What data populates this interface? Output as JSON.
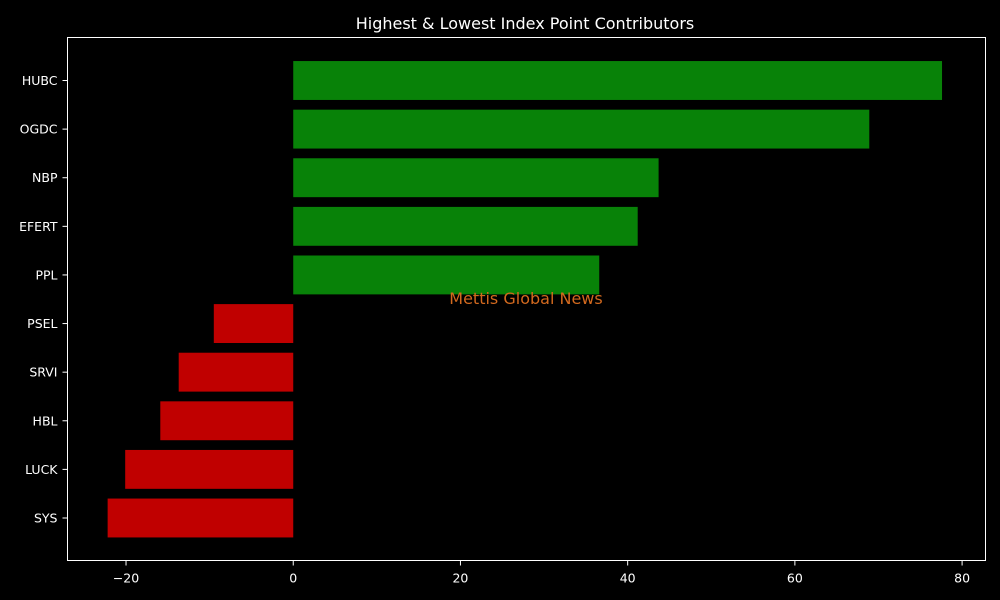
{
  "chart_data": {
    "type": "bar",
    "orientation": "horizontal",
    "title": "Highest & Lowest Index Point Contributors",
    "xlabel": "",
    "ylabel": "",
    "categories": [
      "HUBC",
      "OGDC",
      "NBP",
      "EFERT",
      "PPL",
      "PSEL",
      "SRVI",
      "HBL",
      "LUCK",
      "SYS"
    ],
    "values": [
      77.6,
      68.9,
      43.7,
      41.2,
      36.6,
      -9.5,
      -13.7,
      -15.9,
      -20.1,
      -22.2
    ],
    "xlim": [
      -27,
      82.8
    ],
    "xticks": [
      -20,
      0,
      20,
      40,
      60,
      80
    ],
    "xtick_labels": [
      "−20",
      "0",
      "20",
      "40",
      "60",
      "80"
    ],
    "grid": false,
    "colors": {
      "positive": "#088208",
      "negative": "#c00000",
      "background": "#000000",
      "text": "#ffffff"
    }
  },
  "watermark": {
    "text": "Mettis Global News",
    "color": "#d2691e"
  }
}
